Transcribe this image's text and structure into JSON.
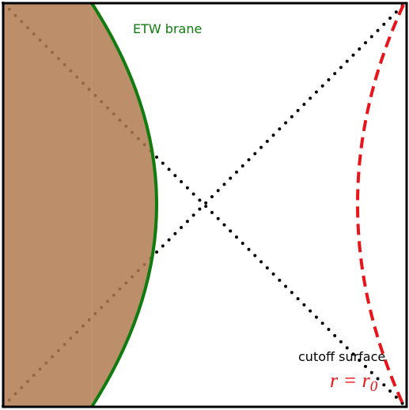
{
  "labels": {
    "brane": "ETW brane",
    "cutoff": "cutoff surface",
    "radius": {
      "main": "r = r",
      "subscript": "0"
    }
  }
}
